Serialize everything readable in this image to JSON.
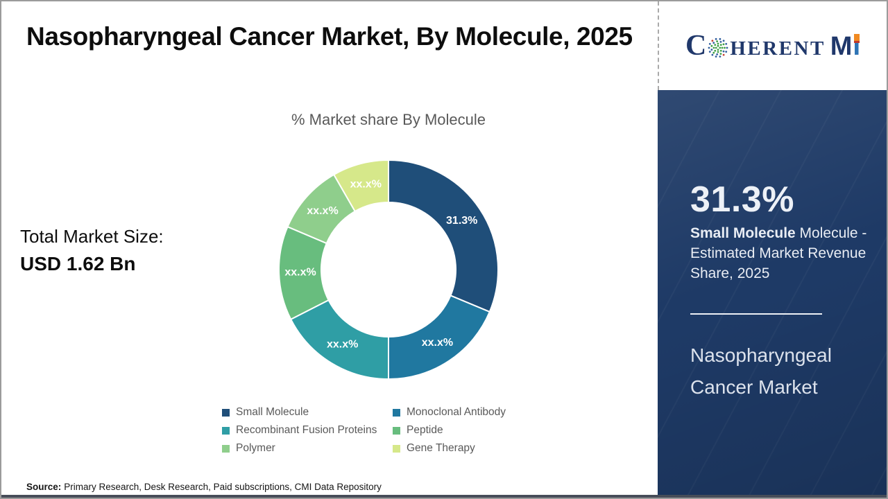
{
  "page": {
    "title": "Nasopharyngeal Cancer Market, By Molecule, 2025",
    "source_label": "Source:",
    "source_text": "Primary Research, Desk Research, Paid subscriptions, CMI Data Repository"
  },
  "totals": {
    "label": "Total Market Size:",
    "value": "USD 1.62 Bn"
  },
  "logo": {
    "letter_c": "C",
    "letters_herent": "HERENT",
    "letter_m": "M",
    "letter_i": "I",
    "navy": "#20386B",
    "blue": "#2E74B5",
    "orange": "#F18A21"
  },
  "sidebar": {
    "stat_value": "31.3%",
    "stat_desc_bold": "Small Molecule",
    "stat_desc_rest": " Molecule - Estimated Market Revenue Share, 2025",
    "market_name": "Nasopharyngeal Cancer Market",
    "bg_color": "#1E3A66"
  },
  "chart_data": {
    "type": "pie",
    "donut": true,
    "title": "% Market share By Molecule",
    "categories": [
      "Small Molecule",
      "Monoclonal Antibody",
      "Recombinant Fusion Proteins",
      "Peptide",
      "Polymer",
      "Gene Therapy"
    ],
    "values": [
      31.3,
      18.7,
      17.5,
      13.9,
      10.3,
      8.3
    ],
    "labels": [
      "31.3%",
      "xx.x%",
      "xx.x%",
      "xx.x%",
      "xx.x%",
      "xx.x%"
    ],
    "colors": [
      "#1F4E79",
      "#2078A0",
      "#2F9EA5",
      "#68BD7E",
      "#8FCE8C",
      "#D6E88A"
    ],
    "legend_position": "bottom"
  }
}
